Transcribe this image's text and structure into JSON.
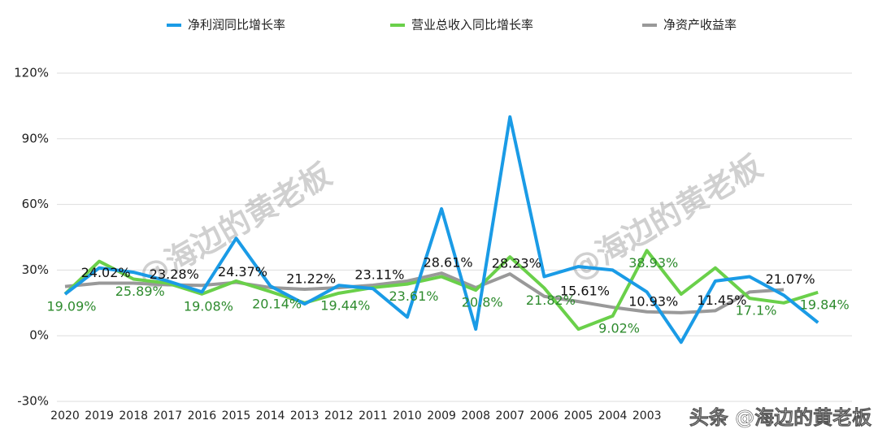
{
  "chart_data": {
    "type": "line",
    "categories": [
      "2020",
      "2019",
      "2018",
      "2017",
      "2016",
      "2015",
      "2014",
      "2013",
      "2012",
      "2011",
      "2010",
      "2009",
      "2008",
      "2007",
      "2006",
      "2005",
      "2004",
      "2003",
      null,
      null,
      null,
      null,
      null
    ],
    "series": [
      {
        "name": "净利润同比增长率",
        "color": "#1a9be6",
        "values": [
          19,
          31,
          29,
          25,
          20,
          44.5,
          22.7,
          14.5,
          23,
          21.5,
          8.5,
          58,
          3,
          100,
          27,
          31.6,
          30,
          20,
          -3,
          25,
          27,
          18.5,
          6
        ]
      },
      {
        "name": "营业总收入同比增长率",
        "color": "#6ad04a",
        "values": [
          19.09,
          34,
          25.89,
          24,
          19.08,
          25,
          20.14,
          15,
          19.44,
          22,
          23.61,
          27,
          20.8,
          36,
          21.82,
          3,
          9.02,
          38.93,
          19,
          31,
          17.1,
          15,
          19.84
        ],
        "value_labels": [
          "19.09%",
          null,
          "25.89%",
          null,
          "19.08%",
          null,
          "20.14%",
          null,
          "19.44%",
          null,
          "23.61%",
          null,
          "20.8%",
          null,
          "21.82%",
          null,
          "9.02%",
          "38.93%",
          null,
          null,
          "17.1%",
          null,
          "19.84%"
        ]
      },
      {
        "name": "净资产收益率",
        "color": "#999999",
        "values": [
          22.5,
          24.02,
          24,
          23.28,
          23,
          24.37,
          22,
          21.22,
          22,
          23.11,
          25,
          28.61,
          22,
          28.23,
          18,
          15.61,
          13,
          10.93,
          10.5,
          11.45,
          20,
          21.07,
          null
        ],
        "value_labels": [
          null,
          "24.02%",
          null,
          "23.28%",
          null,
          "24.37%",
          null,
          "21.22%",
          null,
          "23.11%",
          null,
          "28.61%",
          null,
          "28.23%",
          null,
          "15.61%",
          null,
          "10.93%",
          null,
          "11.45%",
          null,
          "21.07%",
          null
        ]
      }
    ],
    "ylim": [
      -30,
      120
    ],
    "yticks": [
      {
        "value": -30,
        "label": "-30%"
      },
      {
        "value": 0,
        "label": "0%"
      },
      {
        "value": 30,
        "label": "30%"
      },
      {
        "value": 60,
        "label": "60%"
      },
      {
        "value": 90,
        "label": "90%"
      },
      {
        "value": 120,
        "label": "120%"
      }
    ],
    "grid": true,
    "legend": "top",
    "watermarks": [
      "@海边的黄老板",
      "@海边的黄老板",
      "头条 @海边的黄老板"
    ]
  }
}
